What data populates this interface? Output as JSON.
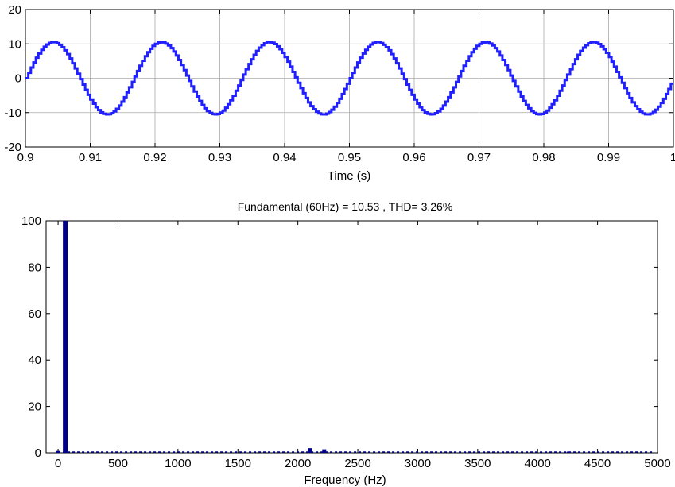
{
  "chart_data": [
    {
      "type": "line",
      "title": "",
      "xlabel": "Time (s)",
      "ylabel": "",
      "xlim": [
        0.9,
        1.0
      ],
      "ylim": [
        -20,
        20
      ],
      "xticks": [
        0.9,
        0.91,
        0.92,
        0.93,
        0.94,
        0.95,
        0.96,
        0.97,
        0.98,
        0.99,
        1.0
      ],
      "xtick_labels": [
        "0.9",
        "0.91",
        "0.92",
        "0.93",
        "0.94",
        "0.95",
        "0.96",
        "0.97",
        "0.98",
        "0.99",
        "1"
      ],
      "yticks": [
        -20,
        -10,
        0,
        10,
        20
      ],
      "ytick_labels": [
        "-20",
        "-10",
        "0",
        "10",
        "20"
      ],
      "grid": true,
      "series": [
        {
          "amplitude": 10.53,
          "frequency_hz": 60,
          "color": "#1f1fff"
        }
      ]
    },
    {
      "type": "bar",
      "title": "Fundamental (60Hz) = 10.53 , THD= 3.26%",
      "xlabel": "Frequency (Hz)",
      "ylabel": "",
      "xlim": [
        -100,
        5000
      ],
      "ylim": [
        0,
        100
      ],
      "xticks": [
        0,
        500,
        1000,
        1500,
        2000,
        2500,
        3000,
        3500,
        4000,
        4500,
        5000
      ],
      "xtick_labels": [
        "0",
        "500",
        "1000",
        "1500",
        "2000",
        "2500",
        "3000",
        "3500",
        "4000",
        "4500",
        "5000"
      ],
      "yticks": [
        0,
        20,
        40,
        60,
        80,
        100
      ],
      "ytick_labels": [
        "0",
        "20",
        "40",
        "60",
        "80",
        "100"
      ],
      "grid": false,
      "color": "#00008b",
      "bars": [
        {
          "x": 0,
          "value": 0.8
        },
        {
          "x": 60,
          "value": 100
        },
        {
          "x": 2100,
          "value": 2.0
        },
        {
          "x": 2220,
          "value": 1.5
        },
        {
          "x": 4260,
          "value": 0.5
        }
      ]
    }
  ]
}
